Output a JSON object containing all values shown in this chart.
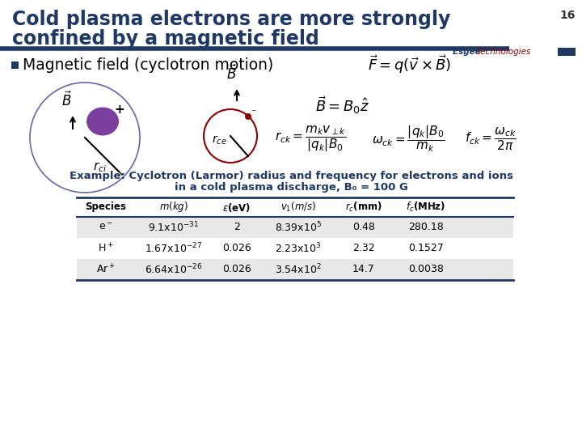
{
  "title_line1": "Cold plasma electrons are more strongly",
  "title_line2": "confined by a magnetic field",
  "title_color": "#1F3864",
  "slide_number": "16",
  "brand_text1": "Esgee ",
  "brand_text2": "Technologies",
  "brand_color1": "#1F3864",
  "brand_color2": "#8B0000",
  "bullet": "Magnetic field (cyclotron motion)",
  "bullet_color": "#000000",
  "accent_color": "#1F3864",
  "table_caption1": "Example: Cyclotron (Larmor) radius and frequency for electrons and ions",
  "table_caption2": "in a cold plasma discharge, B₀ = 100 G",
  "table_caption_color": "#1F3864",
  "row_bg_colors": [
    "#E8E8E8",
    "#FFFFFF",
    "#E8E8E8"
  ],
  "background_color": "#FFFFFF",
  "divider_color": "#1F3864",
  "table_line_color": "#1F3864"
}
